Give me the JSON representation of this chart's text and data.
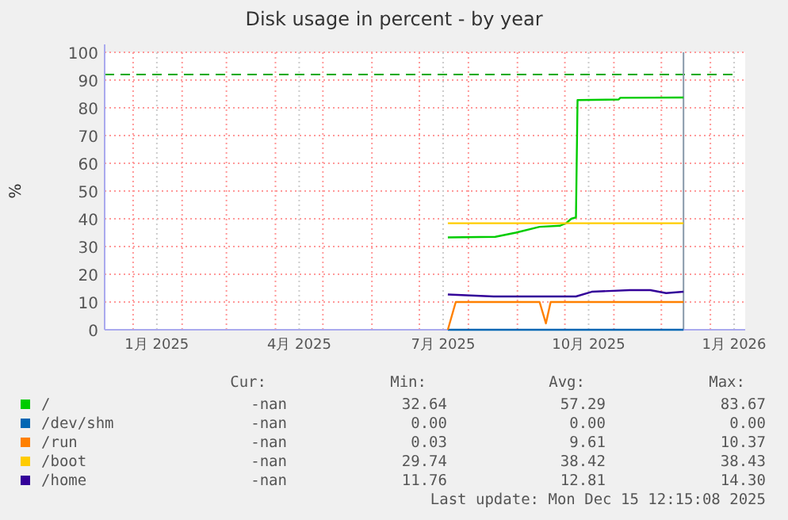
{
  "chart_data": {
    "type": "line",
    "title": "Disk usage in percent - by year",
    "ylabel": "%",
    "xlim": [
      "2024-12-14",
      "2026-01-23"
    ],
    "ylim": [
      0,
      100
    ],
    "yticks": [
      0,
      10,
      20,
      30,
      40,
      50,
      60,
      70,
      80,
      90,
      100
    ],
    "xticks": [
      {
        "value": "2025-01-01",
        "label": null
      },
      {
        "value": "2025-01-16",
        "label": "1月 2025"
      },
      {
        "value": "2025-02-01",
        "label": null
      },
      {
        "value": "2025-03-01",
        "label": null
      },
      {
        "value": "2025-04-01",
        "label": null
      },
      {
        "value": "2025-04-16",
        "label": "4月 2025"
      },
      {
        "value": "2025-05-01",
        "label": null
      },
      {
        "value": "2025-06-01",
        "label": null
      },
      {
        "value": "2025-07-01",
        "label": null
      },
      {
        "value": "2025-07-16",
        "label": "7月 2025"
      },
      {
        "value": "2025-08-01",
        "label": null
      },
      {
        "value": "2025-09-01",
        "label": null
      },
      {
        "value": "2025-10-01",
        "label": null
      },
      {
        "value": "2025-10-16",
        "label": "10月 2025"
      },
      {
        "value": "2025-11-01",
        "label": null
      },
      {
        "value": "2025-12-01",
        "label": null
      },
      {
        "value": "2026-01-01",
        "label": null
      },
      {
        "value": "2026-01-16",
        "label": "1月 2026"
      }
    ],
    "grid": true,
    "legend": "bottom",
    "ref_lines": [
      {
        "axis": "y",
        "value": 92,
        "color": "#00aa00",
        "line_style": "dashed"
      },
      {
        "axis": "x",
        "value": "2025-12-15",
        "color": "#8899aa",
        "line_style": "solid"
      }
    ],
    "series": [
      {
        "name": "/",
        "color": "#00cc00",
        "x": [
          "2025-07-19",
          "2025-08-18",
          "2025-08-31",
          "2025-09-15",
          "2025-09-28",
          "2025-10-02",
          "2025-10-05",
          "2025-10-08",
          "2025-10-09",
          "2025-11-04",
          "2025-11-05",
          "2025-12-15"
        ],
        "values": [
          33.3,
          33.5,
          35,
          37.1,
          37.5,
          38.5,
          40,
          40.5,
          82.8,
          83,
          83.6,
          83.7
        ]
      },
      {
        "name": "/dev/shm",
        "color": "#0066b3",
        "x": [
          "2025-07-19",
          "2025-12-15"
        ],
        "values": [
          0,
          0
        ]
      },
      {
        "name": "/run",
        "color": "#ff8000",
        "x": [
          "2025-07-19",
          "2025-07-24",
          "2025-09-15",
          "2025-09-19",
          "2025-09-22",
          "2025-10-18",
          "2025-12-15"
        ],
        "values": [
          0,
          10,
          10,
          2.3,
          10,
          10,
          10
        ]
      },
      {
        "name": "/boot",
        "color": "#ffcc00",
        "x": [
          "2025-07-19",
          "2025-12-15"
        ],
        "values": [
          38.4,
          38.4
        ]
      },
      {
        "name": "/home",
        "color": "#330099",
        "x": [
          "2025-07-19",
          "2025-08-17",
          "2025-10-08",
          "2025-10-18",
          "2025-11-11",
          "2025-11-24",
          "2025-12-04",
          "2025-12-15"
        ],
        "values": [
          12.7,
          12,
          12,
          13.7,
          14.3,
          14.3,
          13.2,
          13.7
        ]
      }
    ],
    "annotations": [
      "Cur:",
      "Min:",
      "Avg:",
      "Max:",
      "-nan",
      "32.64",
      "57.29",
      "83.67",
      "-nan",
      "0.00",
      "0.00",
      "0.00",
      "-nan",
      "0.03",
      "9.61",
      "10.37",
      "-nan",
      "29.74",
      "38.42",
      "38.43",
      "-nan",
      "11.76",
      "12.81",
      "14.30",
      "Last update: Mon Dec 15 12:15:08 2025"
    ]
  }
}
